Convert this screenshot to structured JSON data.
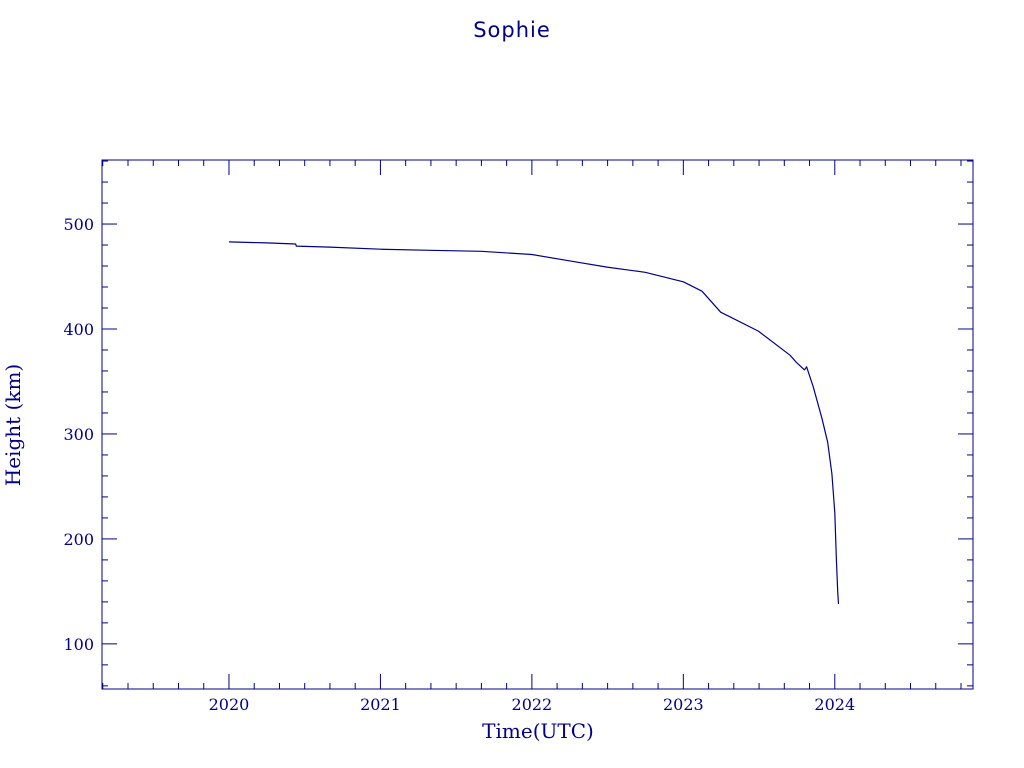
{
  "chart_data": {
    "type": "line",
    "title": "Sophie",
    "xlabel": "Time(UTC)",
    "ylabel": "Height (km)",
    "xlim": [
      "2019-03-01",
      "2024-11-30"
    ],
    "ylim": [
      57,
      561
    ],
    "xticks": [
      "2020",
      "2021",
      "2022",
      "2023",
      "2024"
    ],
    "yticks": [
      100,
      200,
      300,
      400,
      500
    ],
    "grid": false,
    "legend": "none",
    "line_color": "#00008b",
    "series": [
      {
        "x": [
          "2020-01-01",
          "2020-04-01",
          "2020-06-10",
          "2020-06-12",
          "2020-09-01",
          "2021-01-01",
          "2021-05-01",
          "2021-09-01",
          "2022-01-01",
          "2022-04-01",
          "2022-07-01",
          "2022-10-01",
          "2023-01-01",
          "2023-02-15",
          "2023-04-01",
          "2023-07-01",
          "2023-09-15",
          "2023-10-01",
          "2023-10-20",
          "2023-10-25",
          "2023-11-10",
          "2023-12-01",
          "2023-12-15",
          "2023-12-25",
          "2024-01-01",
          "2024-01-05",
          "2024-01-08",
          "2024-01-10"
        ],
        "y": [
          483,
          482,
          481,
          479,
          478,
          476,
          475,
          474,
          471,
          465,
          459,
          454,
          445,
          436,
          416,
          398,
          375,
          368,
          361,
          364,
          345,
          315,
          292,
          262,
          225,
          180,
          150,
          138
        ]
      }
    ]
  }
}
